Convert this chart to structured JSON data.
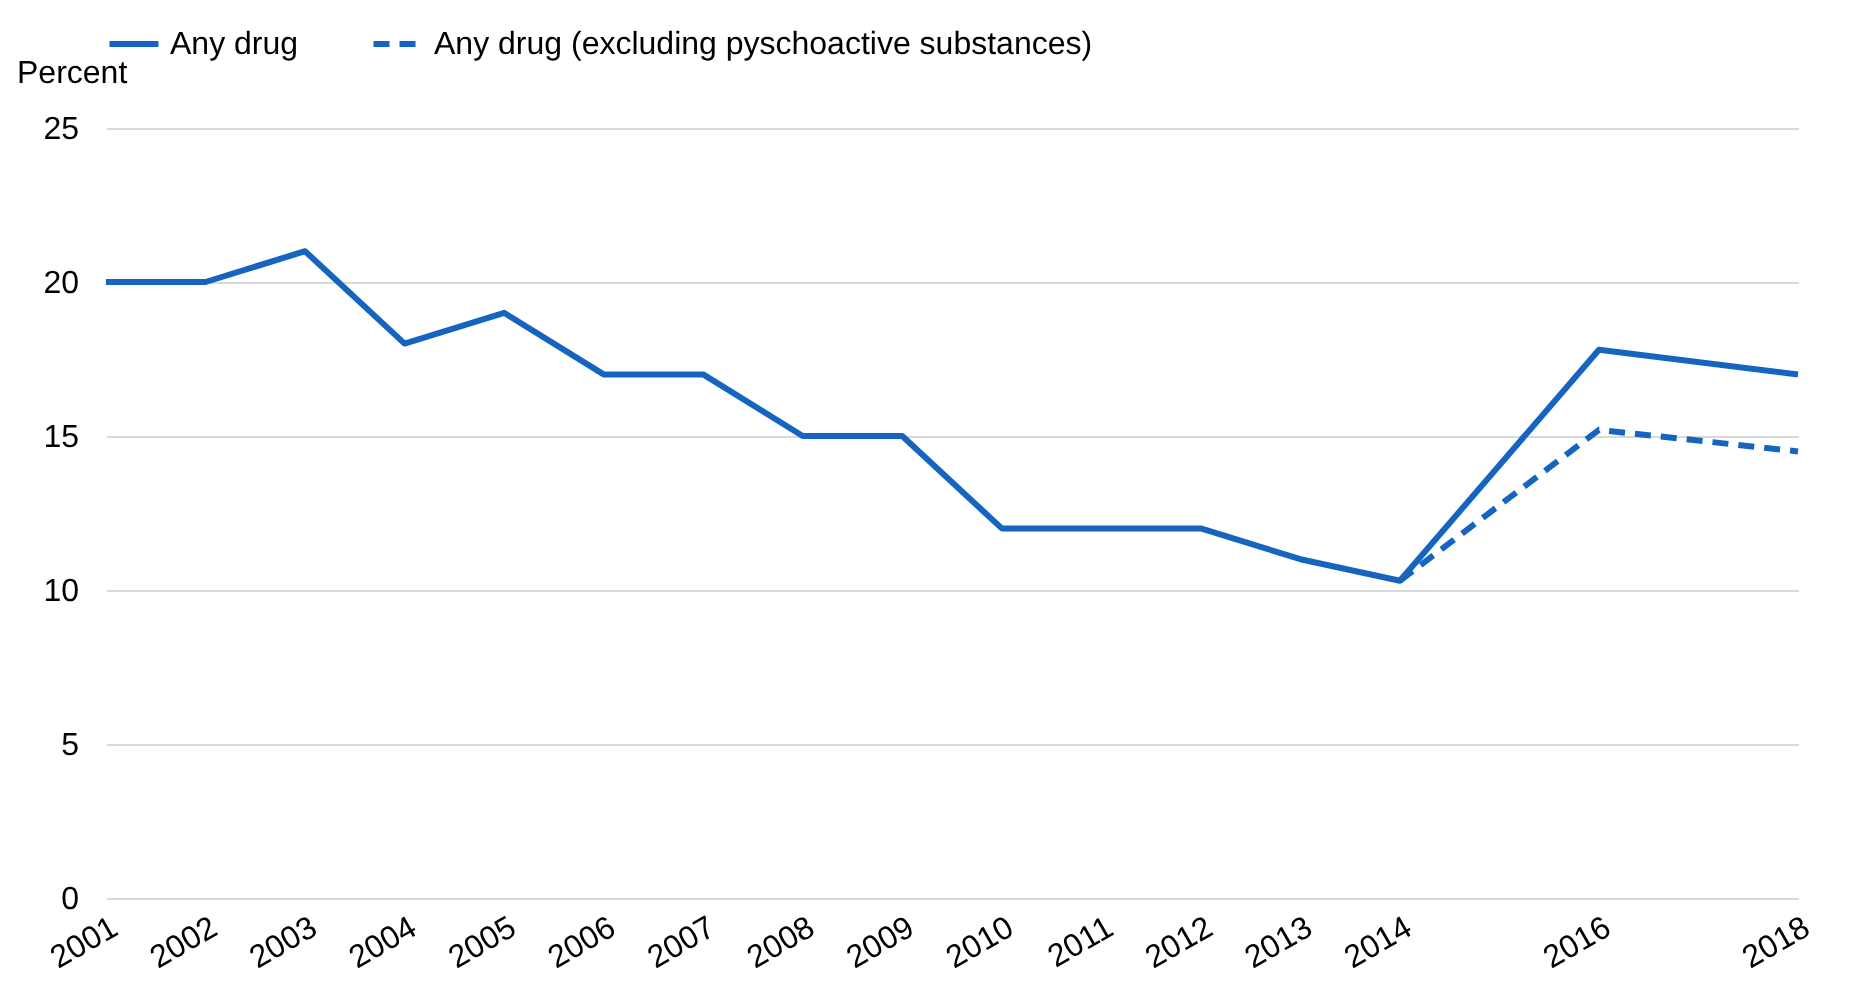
{
  "chart_data": {
    "type": "line",
    "ylabel": "Percent",
    "series": [
      {
        "name": "Any drug",
        "color": "#1565c0",
        "line_style": "solid",
        "x": [
          2001,
          2002,
          2003,
          2004,
          2005,
          2006,
          2007,
          2008,
          2009,
          2010,
          2011,
          2012,
          2013,
          2014,
          2016,
          2018
        ],
        "values": [
          20,
          20,
          21,
          18,
          19,
          17,
          17,
          15,
          15,
          12,
          12,
          12,
          11,
          10.3,
          17.8,
          17
        ]
      },
      {
        "name": "Any drug (excluding pyschoactive substances)",
        "color": "#1565c0",
        "line_style": "dashed",
        "x": [
          2014,
          2016,
          2018
        ],
        "values": [
          10.3,
          15.2,
          14.5
        ]
      }
    ],
    "xlim": [
      2001,
      2018
    ],
    "xticks": [
      2001,
      2002,
      2003,
      2004,
      2005,
      2006,
      2007,
      2008,
      2009,
      2010,
      2011,
      2012,
      2013,
      2014,
      2016,
      2018
    ],
    "ylim": [
      0,
      25
    ],
    "yticks": [
      0,
      5,
      10,
      15,
      20,
      25
    ],
    "grid": "y",
    "legend": "top",
    "marker": "none"
  }
}
